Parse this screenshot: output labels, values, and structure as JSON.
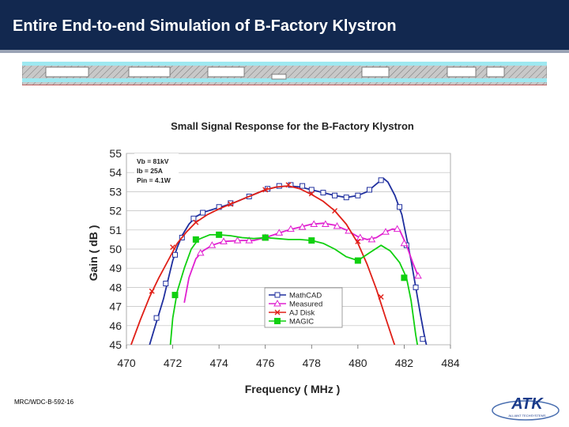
{
  "header": {
    "title": "Entire End-to-end Simulation of B-Factory Klystron"
  },
  "footer": {
    "code": "MRC/WDC-B-592-16"
  },
  "logo": {
    "text": "ATK",
    "subtext": "ALLIANT TECHSYSTEMS"
  },
  "colors": {
    "header_bg": "#12284f",
    "mathcad": "#1f2f9e",
    "measured": "#e020d0",
    "aj_disk": "#e02018",
    "magic": "#10d010"
  },
  "chart_data": {
    "type": "line",
    "title": "Small Signal Response for the B-Factory Klystron",
    "xlabel": "Frequency ( MHz )",
    "ylabel": "Gain ( dB )",
    "xlim": [
      470,
      484
    ],
    "ylim": [
      45,
      55
    ],
    "xticks": [
      "470",
      "472",
      "474",
      "476",
      "478",
      "480",
      "482",
      "484"
    ],
    "yticks": [
      "45",
      "46",
      "47",
      "48",
      "49",
      "50",
      "51",
      "52",
      "53",
      "54",
      "55"
    ],
    "annotation": [
      "Vb  = 81kV",
      "Ib   = 25A",
      "Pin = 4.1W"
    ],
    "legend_position": "lower-right",
    "series": [
      {
        "name": "MathCAD",
        "color": "#1f2f9e",
        "marker": "open-square",
        "points": [
          [
            471.0,
            45.0
          ],
          [
            471.2,
            45.8
          ],
          [
            471.4,
            46.6
          ],
          [
            471.6,
            47.4
          ],
          [
            471.8,
            48.4
          ],
          [
            472.0,
            49.4
          ],
          [
            472.2,
            50.1
          ],
          [
            472.4,
            50.7
          ],
          [
            472.7,
            51.3
          ],
          [
            473.0,
            51.7
          ],
          [
            473.4,
            51.95
          ],
          [
            473.8,
            52.1
          ],
          [
            474.2,
            52.25
          ],
          [
            474.6,
            52.4
          ],
          [
            475.0,
            52.6
          ],
          [
            475.5,
            52.85
          ],
          [
            476.0,
            53.1
          ],
          [
            476.5,
            53.25
          ],
          [
            477.0,
            53.3
          ],
          [
            477.5,
            53.25
          ],
          [
            478.0,
            53.1
          ],
          [
            478.5,
            52.95
          ],
          [
            479.0,
            52.8
          ],
          [
            479.5,
            52.7
          ],
          [
            480.0,
            52.8
          ],
          [
            480.4,
            53.0
          ],
          [
            480.8,
            53.4
          ],
          [
            481.1,
            53.7
          ],
          [
            481.3,
            53.5
          ],
          [
            481.6,
            52.8
          ],
          [
            481.9,
            51.8
          ],
          [
            482.1,
            50.6
          ],
          [
            482.3,
            49.4
          ],
          [
            482.5,
            48.0
          ],
          [
            482.7,
            46.6
          ],
          [
            482.9,
            45.3
          ],
          [
            483.0,
            44.8
          ]
        ],
        "markers": [
          [
            471.3,
            46.4
          ],
          [
            471.7,
            48.2
          ],
          [
            472.1,
            49.7
          ],
          [
            472.4,
            50.6
          ],
          [
            472.9,
            51.6
          ],
          [
            473.3,
            51.9
          ],
          [
            474.0,
            52.2
          ],
          [
            474.5,
            52.4
          ],
          [
            475.3,
            52.75
          ],
          [
            476.1,
            53.15
          ],
          [
            476.6,
            53.3
          ],
          [
            477.1,
            53.35
          ],
          [
            477.6,
            53.3
          ],
          [
            478.0,
            53.1
          ],
          [
            478.5,
            52.95
          ],
          [
            479.0,
            52.8
          ],
          [
            479.5,
            52.7
          ],
          [
            480.0,
            52.8
          ],
          [
            480.5,
            53.1
          ],
          [
            481.0,
            53.6
          ],
          [
            481.8,
            52.2
          ],
          [
            482.1,
            50.2
          ],
          [
            482.5,
            48.0
          ],
          [
            482.8,
            45.3
          ]
        ]
      },
      {
        "name": "Measured",
        "color": "#e020d0",
        "marker": "open-triangle",
        "points": [
          [
            472.5,
            47.2
          ],
          [
            472.7,
            48.5
          ],
          [
            473.0,
            49.5
          ],
          [
            473.3,
            49.9
          ],
          [
            473.7,
            50.2
          ],
          [
            474.2,
            50.4
          ],
          [
            475.0,
            50.45
          ],
          [
            475.5,
            50.45
          ],
          [
            476.0,
            50.6
          ],
          [
            476.5,
            50.8
          ],
          [
            477.0,
            51.0
          ],
          [
            477.5,
            51.15
          ],
          [
            478.0,
            51.3
          ],
          [
            478.5,
            51.35
          ],
          [
            479.0,
            51.25
          ],
          [
            479.5,
            51.0
          ],
          [
            480.0,
            50.65
          ],
          [
            480.4,
            50.5
          ],
          [
            480.8,
            50.6
          ],
          [
            481.2,
            50.9
          ],
          [
            481.5,
            51.05
          ],
          [
            481.8,
            51.0
          ],
          [
            482.1,
            50.2
          ],
          [
            482.4,
            49.2
          ],
          [
            482.6,
            48.6
          ]
        ],
        "markers": [
          [
            473.2,
            49.8
          ],
          [
            473.7,
            50.2
          ],
          [
            474.2,
            50.4
          ],
          [
            474.8,
            50.45
          ],
          [
            475.3,
            50.45
          ],
          [
            476.0,
            50.6
          ],
          [
            476.6,
            50.85
          ],
          [
            477.1,
            51.05
          ],
          [
            477.6,
            51.15
          ],
          [
            478.1,
            51.3
          ],
          [
            478.6,
            51.3
          ],
          [
            479.1,
            51.2
          ],
          [
            479.6,
            50.95
          ],
          [
            480.1,
            50.6
          ],
          [
            480.6,
            50.5
          ],
          [
            481.2,
            50.9
          ],
          [
            481.7,
            51.05
          ],
          [
            482.0,
            50.3
          ],
          [
            482.6,
            48.6
          ]
        ]
      },
      {
        "name": "AJ Disk",
        "color": "#e02018",
        "marker": "x",
        "points": [
          [
            470.2,
            45.0
          ],
          [
            470.6,
            46.3
          ],
          [
            471.0,
            47.5
          ],
          [
            471.4,
            48.5
          ],
          [
            471.8,
            49.4
          ],
          [
            472.2,
            50.3
          ],
          [
            472.6,
            50.9
          ],
          [
            473.0,
            51.4
          ],
          [
            473.5,
            51.8
          ],
          [
            474.0,
            52.1
          ],
          [
            474.5,
            52.35
          ],
          [
            475.0,
            52.6
          ],
          [
            475.5,
            52.85
          ],
          [
            476.0,
            53.1
          ],
          [
            476.5,
            53.25
          ],
          [
            477.0,
            53.3
          ],
          [
            477.5,
            53.15
          ],
          [
            478.0,
            52.85
          ],
          [
            478.5,
            52.5
          ],
          [
            479.0,
            52.0
          ],
          [
            479.5,
            51.3
          ],
          [
            480.0,
            50.3
          ],
          [
            480.4,
            49.2
          ],
          [
            480.8,
            47.9
          ],
          [
            481.2,
            46.4
          ],
          [
            481.5,
            45.3
          ],
          [
            481.7,
            44.6
          ]
        ],
        "markers": [
          [
            471.1,
            47.8
          ],
          [
            472.0,
            50.1
          ],
          [
            473.0,
            51.4
          ],
          [
            474.5,
            52.35
          ],
          [
            476.0,
            53.1
          ],
          [
            477.0,
            53.35
          ],
          [
            478.0,
            52.9
          ],
          [
            479.0,
            52.0
          ],
          [
            480.0,
            50.4
          ],
          [
            481.0,
            47.5
          ]
        ]
      },
      {
        "name": "MAGIC",
        "color": "#10d010",
        "marker": "filled-square",
        "points": [
          [
            471.9,
            45.0
          ],
          [
            472.0,
            46.4
          ],
          [
            472.2,
            47.8
          ],
          [
            472.5,
            49.0
          ],
          [
            472.8,
            50.0
          ],
          [
            473.1,
            50.5
          ],
          [
            473.6,
            50.75
          ],
          [
            474.0,
            50.75
          ],
          [
            474.5,
            50.7
          ],
          [
            475.0,
            50.6
          ],
          [
            475.5,
            50.55
          ],
          [
            476.0,
            50.6
          ],
          [
            476.5,
            50.55
          ],
          [
            477.0,
            50.5
          ],
          [
            477.5,
            50.5
          ],
          [
            478.0,
            50.45
          ],
          [
            478.5,
            50.3
          ],
          [
            479.0,
            50.0
          ],
          [
            479.5,
            49.6
          ],
          [
            480.0,
            49.4
          ],
          [
            480.5,
            49.8
          ],
          [
            481.0,
            50.2
          ],
          [
            481.4,
            49.9
          ],
          [
            481.8,
            49.3
          ],
          [
            482.1,
            48.5
          ],
          [
            482.3,
            47.3
          ],
          [
            482.5,
            45.5
          ],
          [
            482.6,
            44.8
          ]
        ],
        "markers": [
          [
            472.1,
            47.6
          ],
          [
            473.0,
            50.5
          ],
          [
            474.0,
            50.75
          ],
          [
            476.0,
            50.6
          ],
          [
            478.0,
            50.45
          ],
          [
            480.0,
            49.4
          ],
          [
            482.0,
            48.5
          ]
        ]
      }
    ]
  }
}
